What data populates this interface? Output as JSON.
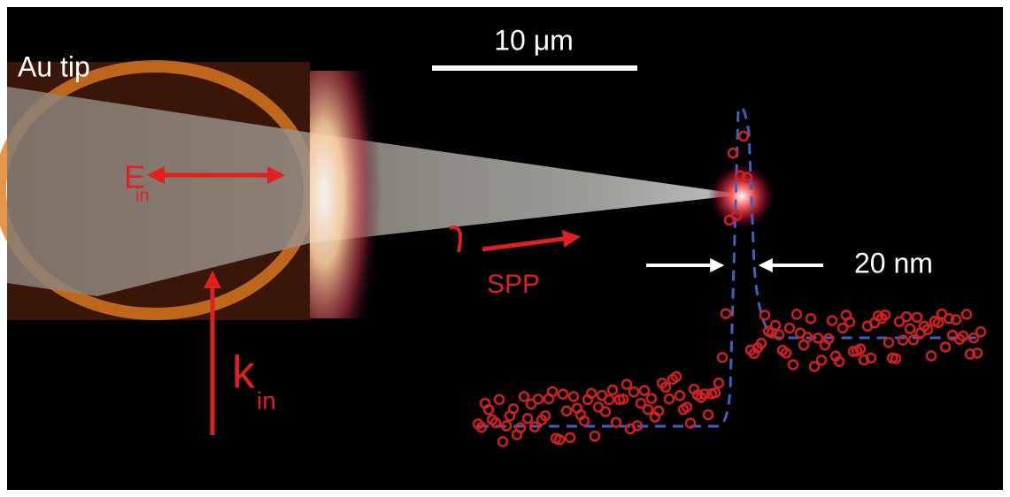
{
  "labels": {
    "tip": "Au tip",
    "scale_bar": "10 μm",
    "field": {
      "main": "E",
      "sub": "in"
    },
    "wavevector": {
      "main": "k",
      "sub": "in"
    },
    "plasmon": "SPP",
    "width": "20 nm"
  }
}
